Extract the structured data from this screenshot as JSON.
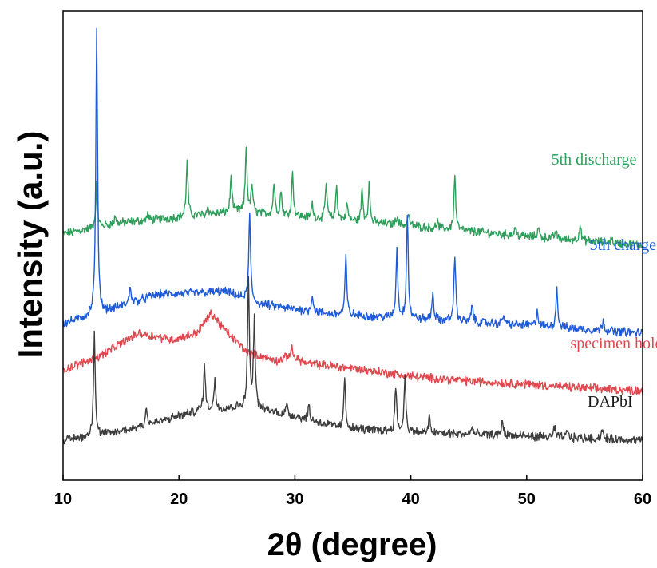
{
  "chart_data": {
    "type": "line",
    "title": "",
    "xlabel": "2θ (degree)",
    "ylabel": "Intensity (a.u.)",
    "xlim": [
      10,
      60
    ],
    "xticks": [
      "10",
      "20",
      "30",
      "40",
      "50",
      "60"
    ],
    "yticks": [],
    "grid": false,
    "legend": "none",
    "series": [
      {
        "name": "5th discharge",
        "color": "#2e9e5b",
        "baseline": [
          [
            10,
            2.58
          ],
          [
            15,
            2.72
          ],
          [
            25,
            2.86
          ],
          [
            30,
            2.8
          ],
          [
            40,
            2.68
          ],
          [
            50,
            2.55
          ],
          [
            60,
            2.44
          ]
        ],
        "peaks": [
          [
            12.9,
            0.55
          ],
          [
            14.5,
            0.1
          ],
          [
            17.3,
            0.07
          ],
          [
            20.7,
            0.68
          ],
          [
            22.5,
            0.1
          ],
          [
            24.5,
            0.45
          ],
          [
            25.8,
            0.82
          ],
          [
            26.3,
            0.35
          ],
          [
            28.2,
            0.4
          ],
          [
            28.8,
            0.3
          ],
          [
            29.8,
            0.55
          ],
          [
            31.5,
            0.18
          ],
          [
            32.7,
            0.45
          ],
          [
            33.6,
            0.42
          ],
          [
            34.5,
            0.22
          ],
          [
            35.8,
            0.4
          ],
          [
            36.4,
            0.48
          ],
          [
            38.8,
            0.12
          ],
          [
            39.8,
            0.15
          ],
          [
            42.3,
            0.08
          ],
          [
            43.8,
            0.68
          ],
          [
            49.0,
            0.1
          ],
          [
            51.0,
            0.12
          ],
          [
            52.5,
            0.1
          ],
          [
            54.6,
            0.2
          ],
          [
            57.3,
            0.06
          ]
        ]
      },
      {
        "name": "5th charge",
        "color": "#1f5bd6",
        "baseline": [
          [
            10,
            1.46
          ],
          [
            13.5,
            1.6
          ],
          [
            18,
            1.82
          ],
          [
            24,
            1.86
          ],
          [
            27,
            1.7
          ],
          [
            33,
            1.58
          ],
          [
            40,
            1.52
          ],
          [
            50,
            1.44
          ],
          [
            60,
            1.34
          ]
        ],
        "peaks": [
          [
            12.9,
            3.55
          ],
          [
            15.8,
            0.22
          ],
          [
            26.1,
            1.07
          ],
          [
            31.5,
            0.22
          ],
          [
            34.4,
            0.72
          ],
          [
            38.8,
            0.85
          ],
          [
            39.7,
            1.3
          ],
          [
            41.9,
            0.35
          ],
          [
            43.8,
            0.85
          ],
          [
            45.3,
            0.22
          ],
          [
            48.0,
            0.12
          ],
          [
            50.9,
            0.2
          ],
          [
            52.6,
            0.5
          ],
          [
            56.6,
            0.15
          ]
        ]
      },
      {
        "name": "specimen holder",
        "color": "#e0484f",
        "baseline": [
          [
            10,
            0.88
          ],
          [
            13,
            1.04
          ],
          [
            16.5,
            1.34
          ],
          [
            19.5,
            1.26
          ],
          [
            21.5,
            1.34
          ],
          [
            22.8,
            1.59
          ],
          [
            24,
            1.37
          ],
          [
            26,
            1.09
          ],
          [
            28.5,
            0.99
          ],
          [
            29.7,
            1.06
          ],
          [
            31,
            0.96
          ],
          [
            35,
            0.9
          ],
          [
            40,
            0.8
          ],
          [
            45,
            0.74
          ],
          [
            50,
            0.7
          ],
          [
            55,
            0.65
          ],
          [
            60,
            0.62
          ]
        ],
        "peaks": [
          [
            29.7,
            0.1
          ]
        ]
      },
      {
        "name": "DAPbI",
        "color": "#3d3d3d",
        "baseline": [
          [
            10,
            0.0
          ],
          [
            14,
            0.08
          ],
          [
            18,
            0.22
          ],
          [
            22,
            0.38
          ],
          [
            26,
            0.42
          ],
          [
            30,
            0.3
          ],
          [
            34,
            0.15
          ],
          [
            40,
            0.1
          ],
          [
            50,
            0.05
          ],
          [
            60,
            0.0
          ]
        ],
        "peaks": [
          [
            12.7,
            1.3
          ],
          [
            17.2,
            0.22
          ],
          [
            22.2,
            0.55
          ],
          [
            23.1,
            0.35
          ],
          [
            26.0,
            1.6
          ],
          [
            26.5,
            1.1
          ],
          [
            29.3,
            0.12
          ],
          [
            31.2,
            0.18
          ],
          [
            34.3,
            0.62
          ],
          [
            38.7,
            0.55
          ],
          [
            39.5,
            0.7
          ],
          [
            41.6,
            0.18
          ],
          [
            45.3,
            0.1
          ],
          [
            47.9,
            0.2
          ],
          [
            52.4,
            0.12
          ],
          [
            53.5,
            0.08
          ],
          [
            56.5,
            0.12
          ]
        ]
      }
    ],
    "annotations": [
      {
        "text": "5th discharge",
        "color": "#2e9e5b",
        "anchor_x": 55.8,
        "anchor_y": 3.45
      },
      {
        "text": "5th charge",
        "color": "#1f5bd6",
        "anchor_x": 58.3,
        "anchor_y": 2.38
      },
      {
        "text": "specimen holder",
        "color": "#e0484f",
        "anchor_x": 58.3,
        "anchor_y": 1.15
      },
      {
        "text": "DAPbI",
        "color": "#1a1a1a",
        "anchor_x": 57.2,
        "anchor_y": 0.42
      }
    ]
  }
}
